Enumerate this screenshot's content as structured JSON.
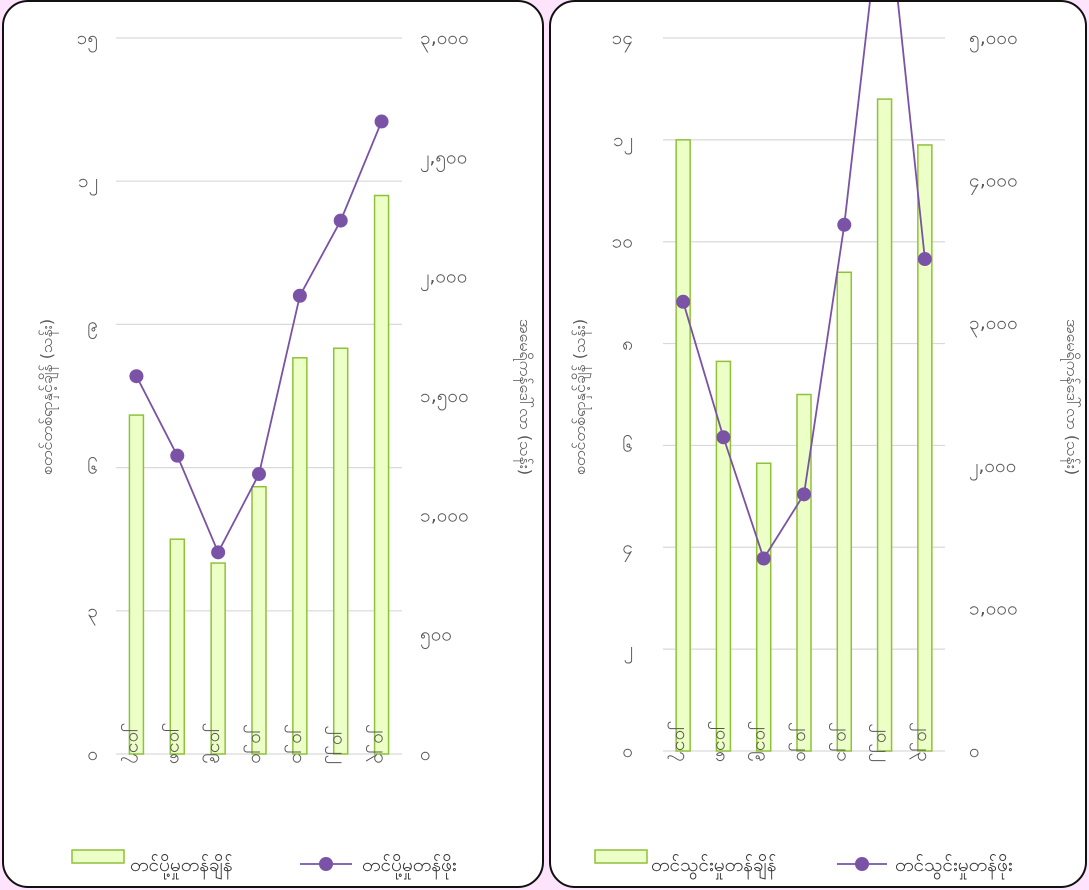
{
  "charts": [
    {
      "type": "bar",
      "categories": [
        "၂၀၁၇",
        "၂၀၁၈",
        "၂၀၁၉",
        "၂၀၂၀",
        "၂၀၂၁",
        "၂၀၂၂",
        "၂၀၂၃"
      ],
      "bar_series": {
        "name": "တင်ပို့မှုတန်ချိန်",
        "values": [
          7.1,
          4.5,
          4.0,
          5.6,
          8.3,
          8.5,
          11.7
        ],
        "color": "#ecffc6",
        "border": "#8fc13a"
      },
      "line_series": {
        "name": "တင်ပို့မှုတန်ဖိုး",
        "values": [
          1583,
          1250,
          845,
          1173,
          1920,
          2235,
          2650
        ],
        "color": "#7a52a6"
      },
      "y_left": {
        "label": "စတင်တစ်ရာနှင့်ချိန် (သန်း)",
        "ticks": [
          "၀",
          "၃",
          "၆",
          "၉",
          "၁၂",
          "၁၅"
        ],
        "max": 15
      },
      "y_right": {
        "label": "အမေရိကန်ဒေါ်လာ (သန်း)",
        "ticks": [
          "၀",
          "၅၀၀",
          "၁,၀၀၀",
          "၁,၅၀၀",
          "၂,၀၀၀",
          "၂,၅၀၀",
          "၃,၀၀၀"
        ],
        "max": 3000
      }
    },
    {
      "type": "bar",
      "categories": [
        "၂၀၁၇",
        "၂၀၁၈",
        "၂၀၁၉",
        "၂၀၂၀",
        "၂၀၂၁",
        "၂၀၂၂",
        "၂၀၂၃"
      ],
      "bar_series": {
        "name": "တင်သွင်းမှုတန်ချိန်",
        "values": [
          12.0,
          7.65,
          5.65,
          7.0,
          9.4,
          12.8,
          11.9
        ],
        "color": "#ecffc6",
        "border": "#8fc13a"
      },
      "line_series": {
        "name": "တင်သွင်းမှုတန်ဖိုး",
        "values": [
          3150,
          2200,
          1350,
          1800,
          3690,
          6150,
          3450
        ],
        "color": "#7a52a6"
      },
      "y_left": {
        "label": "စတင်တစ်ရာနှင့်ချိန် (သန်း)",
        "ticks": [
          "၀",
          "၂",
          "၄",
          "၆",
          "၈",
          "၁၀",
          "၁၂",
          "၁၄"
        ],
        "max": 14
      },
      "y_right": {
        "label": "အမေရိကန်ဒေါ်လာ (သန်း)",
        "ticks": [
          "၀",
          "၁,၀၀၀",
          "၂,၀၀၀",
          "၃,၀၀၀",
          "၄,၀၀၀",
          "၅,၀၀၀"
        ],
        "max": 5000
      }
    }
  ],
  "chart_data": [
    {
      "type": "bar",
      "categories": [
        "၂၀၁၇",
        "၂၀၁၈",
        "၂၀၁၉",
        "၂၀၂၀",
        "၂၀၂၁",
        "၂၀၂၂",
        "၂၀၂၃"
      ],
      "series": [
        {
          "name": "တင်ပို့မှုတန်ချိန်",
          "type": "bar",
          "axis": "left",
          "values": [
            7.1,
            4.5,
            4.0,
            5.6,
            8.3,
            8.5,
            11.7
          ]
        },
        {
          "name": "တင်ပို့မှုတန်ဖိုး",
          "type": "line",
          "axis": "right",
          "values": [
            1583,
            1250,
            845,
            1173,
            1920,
            2235,
            2650
          ]
        }
      ],
      "ylabel": "စတင်တစ်ရာနှင့်ချိန် (သန်း)",
      "y2label": "အမေရိကန်ဒေါ်လာ (သန်း)",
      "ylim": [
        0,
        15
      ],
      "y2lim": [
        0,
        3000
      ],
      "grid": true,
      "legend": "bottom"
    },
    {
      "type": "bar",
      "categories": [
        "၂၀၁၇",
        "၂၀၁၈",
        "၂၀၁၉",
        "၂၀၂၀",
        "၂၀၂၁",
        "၂၀၂၂",
        "၂၀၂၃"
      ],
      "series": [
        {
          "name": "တင်သွင်းမှုတန်ချိန်",
          "type": "bar",
          "axis": "left",
          "values": [
            12.0,
            7.65,
            5.65,
            7.0,
            9.4,
            12.8,
            11.9
          ]
        },
        {
          "name": "တင်သွင်းမှုတန်ဖိုး",
          "type": "line",
          "axis": "right",
          "values": [
            3150,
            2200,
            1350,
            1800,
            3690,
            6150,
            3450
          ]
        }
      ],
      "ylabel": "စတင်တစ်ရာနှင့်ချိန် (သန်း)",
      "y2label": "အမေရိကန်ဒေါ်လာ (သန်း)",
      "ylim": [
        0,
        14
      ],
      "y2lim": [
        0,
        5000
      ],
      "grid": true,
      "legend": "bottom"
    }
  ]
}
